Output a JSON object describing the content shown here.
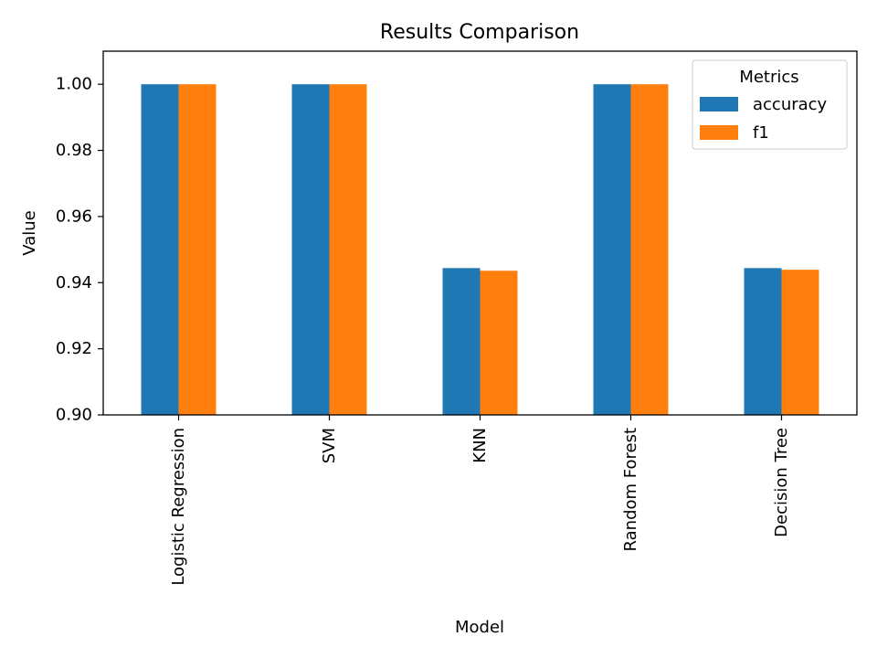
{
  "chart_data": {
    "type": "bar",
    "title": "Results Comparison",
    "xlabel": "Model",
    "ylabel": "Value",
    "categories": [
      "Logistic Regression",
      "SVM",
      "KNN",
      "Random Forest",
      "Decision Tree"
    ],
    "series": [
      {
        "name": "accuracy",
        "color": "#1f77b4",
        "values": [
          1.0,
          1.0,
          0.9444,
          1.0,
          0.9444
        ]
      },
      {
        "name": "f1",
        "color": "#ff7f0e",
        "values": [
          1.0,
          1.0,
          0.9436,
          1.0,
          0.9439
        ]
      }
    ],
    "ylim": [
      0.9,
      1.01
    ],
    "yticks": [
      "0.90",
      "0.92",
      "0.94",
      "0.96",
      "0.98",
      "1.00"
    ],
    "legend": {
      "title": "Metrics",
      "position": "top-right"
    },
    "grid": false
  }
}
